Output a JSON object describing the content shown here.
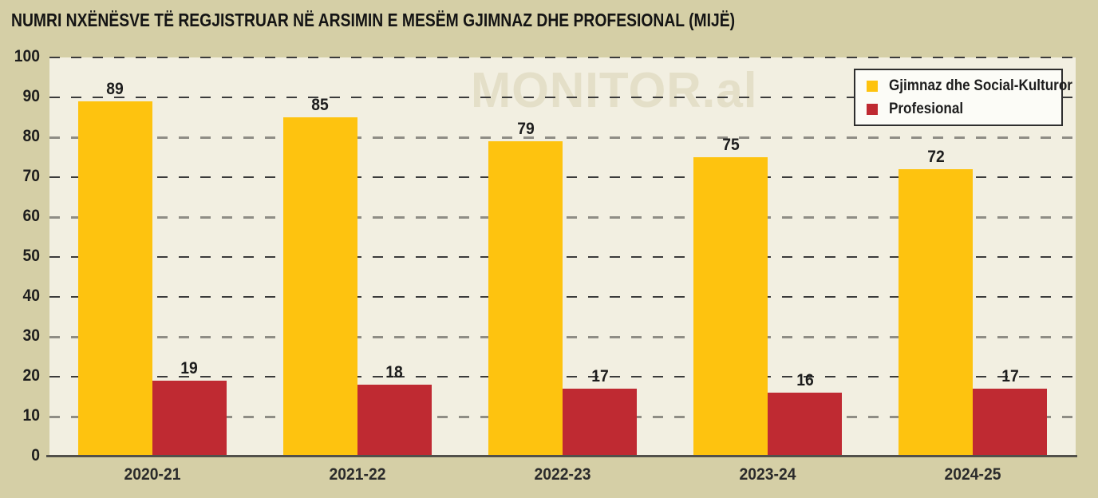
{
  "title": "NUMRI NXËNËSVE TË REGJISTRUAR NË ARSIMIN E MESËM GJIMNAZ DHE PROFESIONAL (MIJË)",
  "watermark": "MONITOR.al",
  "colors": {
    "page_bg": "#D5CFA6",
    "plot_bg": "#F2EFE1",
    "watermark": "#E4DFC8",
    "grid_dark": "#3b3b3b",
    "grid_gray": "#8F8D85",
    "axis_line": "#52504A",
    "label_text": "#1D1D1D",
    "legend_bg": "#FCFCF7",
    "legend_border": "#2E2E2E"
  },
  "chart_data": {
    "type": "bar",
    "title": "NUMRI NXËNËSVE TË REGJISTRUAR NË ARSIMIN E MESËM GJIMNAZ DHE PROFESIONAL (MIJË)",
    "categories": [
      "2020-21",
      "2021-22",
      "2022-23",
      "2023-24",
      "2024-25"
    ],
    "series": [
      {
        "name": "Gjimnaz dhe Social-Kulturor",
        "color": "#FEC30F",
        "values": [
          89,
          85,
          79,
          75,
          72
        ]
      },
      {
        "name": "Profesional",
        "color": "#BF2A32",
        "values": [
          19,
          18,
          17,
          16,
          17
        ]
      }
    ],
    "xlabel": "",
    "ylabel": "",
    "ylim": [
      0,
      100
    ],
    "ytick_step": 10,
    "grid": "horizontal-dashed",
    "gray_gridlines": [
      80,
      60,
      30,
      10
    ],
    "value_labels": true,
    "legend_position": "top-right",
    "watermark": "MONITOR.al"
  }
}
